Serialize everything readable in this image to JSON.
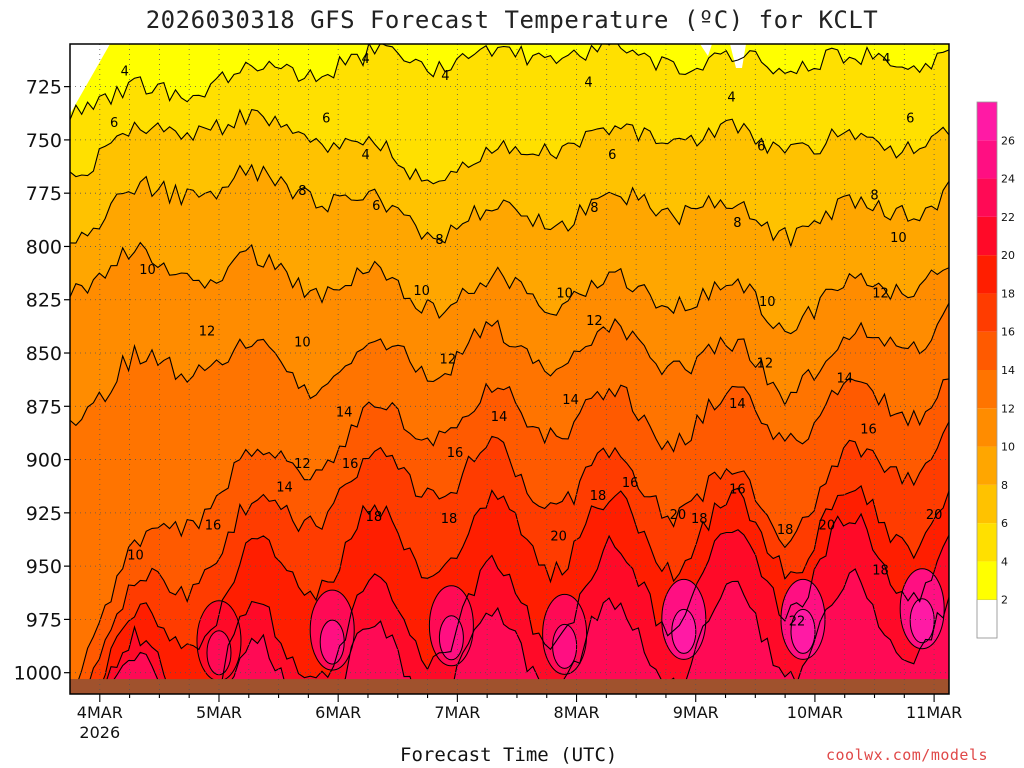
{
  "chart_data": {
    "type": "heatmap",
    "title": "2026030318 GFS Forecast Temperature (ºC) for KCLT",
    "xlabel": "Forecast Time (UTC)",
    "ylabel": "",
    "credit": "coolwx.com/models",
    "y_axis": {
      "range": [
        1010,
        705
      ],
      "ticks": [
        "725",
        "750",
        "775",
        "800",
        "825",
        "850",
        "875",
        "900",
        "925",
        "950",
        "975",
        "1000"
      ],
      "tick_values": [
        725,
        750,
        775,
        800,
        825,
        850,
        875,
        900,
        925,
        950,
        975,
        1000
      ]
    },
    "x_axis": {
      "range_days": [
        3.75,
        11.125
      ],
      "ticks": [
        "4MAR",
        "5MAR",
        "6MAR",
        "7MAR",
        "8MAR",
        "9MAR",
        "10MAR",
        "11MAR"
      ],
      "tick_days": [
        4,
        5,
        6,
        7,
        8,
        9,
        10,
        11
      ],
      "year_label": "2026"
    },
    "colorbar": {
      "labels": [
        "2",
        "4",
        "6",
        "8",
        "10",
        "12",
        "14",
        "16",
        "18",
        "20",
        "22",
        "24",
        "26"
      ],
      "levels": [
        2,
        4,
        6,
        8,
        10,
        12,
        14,
        16,
        18,
        20,
        22,
        24,
        26,
        28
      ],
      "colors": [
        "#ffff00",
        "#ffe000",
        "#ffc200",
        "#ffa600",
        "#ff8c00",
        "#ff7400",
        "#ff5a00",
        "#ff3c00",
        "#ff1e00",
        "#ff0a28",
        "#ff0a55",
        "#ff0f82",
        "#ff1aa5"
      ],
      "below_color": "#ffffff"
    },
    "isotherms": [
      {
        "temp": 4,
        "pressure_daily": [
          735,
          725,
          715,
          712,
          710,
          712,
          715,
          712,
          710
        ],
        "diurnal_amp": 4
      },
      {
        "temp": 6,
        "pressure_daily": [
          762,
          742,
          745,
          765,
          752,
          745,
          752,
          750,
          742
        ],
        "diurnal_amp": 5
      },
      {
        "temp": 8,
        "pressure_daily": [
          790,
          770,
          772,
          790,
          785,
          778,
          790,
          780,
          772
        ],
        "diurnal_amp": 6
      },
      {
        "temp": 10,
        "pressure_daily": [
          812,
          808,
          815,
          822,
          822,
          820,
          830,
          815,
          800
        ],
        "diurnal_amp": 8
      },
      {
        "temp": 12,
        "pressure_daily": [
          875,
          850,
          858,
          850,
          848,
          848,
          860,
          840,
          825
        ],
        "diurnal_amp": 10
      },
      {
        "temp": 14,
        "pressure_daily": [
          995,
          918,
          895,
          880,
          878,
          880,
          880,
          870,
          860
        ],
        "diurnal_amp": 12
      },
      {
        "temp": 16,
        "pressure_daily": [
          1002,
          948,
          918,
          905,
          910,
          912,
          925,
          895,
          882
        ],
        "diurnal_amp": 14
      },
      {
        "temp": 18,
        "pressure_daily": [
          1008,
          972,
          945,
          938,
          935,
          935,
          935,
          925,
          920
        ],
        "diurnal_amp": 18
      },
      {
        "temp": 20,
        "pressure_daily": [
          1012,
          1000,
          985,
          975,
          965,
          958,
          950,
          945,
          940
        ],
        "diurnal_amp": 22
      },
      {
        "temp": 22,
        "pressure_daily": [
          1015,
          1012,
          1003,
          995,
          990,
          985,
          980,
          975,
          970
        ],
        "diurnal_amp": 22
      }
    ],
    "contour_labels": [
      {
        "text": "4",
        "day": 4.21,
        "p": 718
      },
      {
        "text": "4",
        "day": 6.23,
        "p": 712
      },
      {
        "text": "4",
        "day": 6.23,
        "p": 757
      },
      {
        "text": "4",
        "day": 6.9,
        "p": 720
      },
      {
        "text": "4",
        "day": 8.1,
        "p": 723
      },
      {
        "text": "4",
        "day": 9.3,
        "p": 730
      },
      {
        "text": "4",
        "day": 10.6,
        "p": 712
      },
      {
        "text": "6",
        "day": 4.12,
        "p": 742
      },
      {
        "text": "6",
        "day": 5.9,
        "p": 740
      },
      {
        "text": "6",
        "day": 6.32,
        "p": 781
      },
      {
        "text": "6",
        "day": 8.3,
        "p": 757
      },
      {
        "text": "6",
        "day": 9.55,
        "p": 753
      },
      {
        "text": "6",
        "day": 10.8,
        "p": 740
      },
      {
        "text": "8",
        "day": 5.7,
        "p": 774
      },
      {
        "text": "8",
        "day": 6.85,
        "p": 797
      },
      {
        "text": "8",
        "day": 8.15,
        "p": 782
      },
      {
        "text": "8",
        "day": 9.35,
        "p": 789
      },
      {
        "text": "8",
        "day": 10.5,
        "p": 776
      },
      {
        "text": "10",
        "day": 4.4,
        "p": 811
      },
      {
        "text": "10",
        "day": 5.7,
        "p": 845
      },
      {
        "text": "10",
        "day": 6.7,
        "p": 821
      },
      {
        "text": "10",
        "day": 7.9,
        "p": 822
      },
      {
        "text": "10",
        "day": 9.6,
        "p": 826
      },
      {
        "text": "10",
        "day": 10.7,
        "p": 796
      },
      {
        "text": "10",
        "day": 4.3,
        "p": 945
      },
      {
        "text": "12",
        "day": 4.9,
        "p": 840
      },
      {
        "text": "12",
        "day": 6.92,
        "p": 853
      },
      {
        "text": "12",
        "day": 8.15,
        "p": 835
      },
      {
        "text": "12",
        "day": 9.58,
        "p": 855
      },
      {
        "text": "12",
        "day": 10.55,
        "p": 822
      },
      {
        "text": "12",
        "day": 5.7,
        "p": 902
      },
      {
        "text": "14",
        "day": 6.05,
        "p": 878
      },
      {
        "text": "14",
        "day": 7.35,
        "p": 880
      },
      {
        "text": "14",
        "day": 7.95,
        "p": 872
      },
      {
        "text": "14",
        "day": 9.35,
        "p": 874
      },
      {
        "text": "14",
        "day": 10.25,
        "p": 862
      },
      {
        "text": "14",
        "day": 5.55,
        "p": 913
      },
      {
        "text": "16",
        "day": 6.1,
        "p": 902
      },
      {
        "text": "16",
        "day": 6.98,
        "p": 897
      },
      {
        "text": "16",
        "day": 8.45,
        "p": 911
      },
      {
        "text": "16",
        "day": 9.35,
        "p": 914
      },
      {
        "text": "16",
        "day": 10.45,
        "p": 886
      },
      {
        "text": "16",
        "day": 4.95,
        "p": 931
      },
      {
        "text": "18",
        "day": 6.3,
        "p": 927
      },
      {
        "text": "18",
        "day": 6.93,
        "p": 928
      },
      {
        "text": "18",
        "day": 8.18,
        "p": 917
      },
      {
        "text": "18",
        "day": 9.03,
        "p": 928
      },
      {
        "text": "18",
        "day": 9.75,
        "p": 933
      },
      {
        "text": "18",
        "day": 10.55,
        "p": 952
      },
      {
        "text": "20",
        "day": 7.85,
        "p": 936
      },
      {
        "text": "20",
        "day": 8.85,
        "p": 926
      },
      {
        "text": "20",
        "day": 10.1,
        "p": 931
      },
      {
        "text": "20",
        "day": 11.0,
        "p": 926
      },
      {
        "text": "22",
        "day": 9.85,
        "p": 976
      }
    ]
  }
}
